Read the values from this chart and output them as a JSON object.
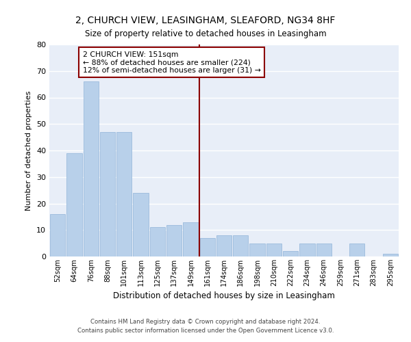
{
  "title": "2, CHURCH VIEW, LEASINGHAM, SLEAFORD, NG34 8HF",
  "subtitle": "Size of property relative to detached houses in Leasingham",
  "xlabel": "Distribution of detached houses by size in Leasingham",
  "ylabel": "Number of detached properties",
  "bar_labels": [
    "52sqm",
    "64sqm",
    "76sqm",
    "88sqm",
    "101sqm",
    "113sqm",
    "125sqm",
    "137sqm",
    "149sqm",
    "161sqm",
    "174sqm",
    "186sqm",
    "198sqm",
    "210sqm",
    "222sqm",
    "234sqm",
    "246sqm",
    "259sqm",
    "271sqm",
    "283sqm",
    "295sqm"
  ],
  "bar_values": [
    16,
    39,
    66,
    47,
    47,
    24,
    11,
    12,
    13,
    7,
    8,
    8,
    5,
    5,
    2,
    5,
    5,
    0,
    5,
    0,
    1
  ],
  "bar_color": "#b8d0ea",
  "bar_edge_color": "#90b4d8",
  "bg_color": "#e8eef8",
  "grid_color": "#ffffff",
  "vline_color": "#8b0000",
  "annotation_text": "2 CHURCH VIEW: 151sqm\n← 88% of detached houses are smaller (224)\n12% of semi-detached houses are larger (31) →",
  "annotation_box_color": "#8b0000",
  "ylim": [
    0,
    80
  ],
  "yticks": [
    0,
    10,
    20,
    30,
    40,
    50,
    60,
    70,
    80
  ],
  "footer_line1": "Contains HM Land Registry data © Crown copyright and database right 2024.",
  "footer_line2": "Contains public sector information licensed under the Open Government Licence v3.0."
}
